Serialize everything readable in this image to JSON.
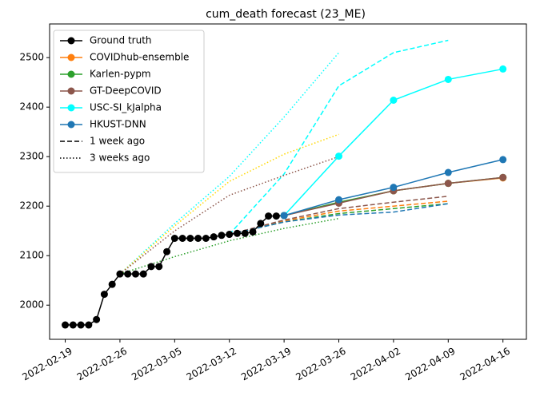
{
  "chart_data": {
    "type": "line",
    "title": "cum_death forecast (23_ME)",
    "xlim": [
      "2022-02-17",
      "2022-04-19"
    ],
    "ylim": [
      1931,
      2568
    ],
    "xticks": [
      "2022-02-19",
      "2022-02-26",
      "2022-03-05",
      "2022-03-12",
      "2022-03-19",
      "2022-03-26",
      "2022-04-02",
      "2022-04-09",
      "2022-04-16"
    ],
    "yticks": [
      2000,
      2100,
      2200,
      2300,
      2400,
      2500
    ],
    "legend": "upper left",
    "series": [
      {
        "name": "Ground truth",
        "color": "#000000",
        "x": [
          "2022-02-19",
          "2022-02-20",
          "2022-02-21",
          "2022-02-22",
          "2022-02-23",
          "2022-02-24",
          "2022-02-25",
          "2022-02-26",
          "2022-02-27",
          "2022-02-28",
          "2022-03-01",
          "2022-03-02",
          "2022-03-03",
          "2022-03-04",
          "2022-03-05",
          "2022-03-06",
          "2022-03-07",
          "2022-03-08",
          "2022-03-09",
          "2022-03-10",
          "2022-03-11",
          "2022-03-12",
          "2022-03-13",
          "2022-03-14",
          "2022-03-15",
          "2022-03-16",
          "2022-03-17",
          "2022-03-18",
          "2022-03-19"
        ],
        "values": [
          1960,
          1960,
          1960,
          1960,
          1971,
          2022,
          2042,
          2063,
          2063,
          2063,
          2063,
          2078,
          2078,
          2108,
          2135,
          2135,
          2135,
          2135,
          2135,
          2138,
          2141,
          2143,
          2145,
          2145,
          2148,
          2165,
          2180,
          2180,
          2181
        ]
      },
      {
        "name": "COVIDhub-ensemble",
        "color": "#ff7f0e",
        "x": [
          "2022-03-19",
          "2022-03-26",
          "2022-04-02",
          "2022-04-09",
          "2022-04-16"
        ],
        "values": [
          2181,
          2207,
          2231,
          2246,
          2257
        ]
      },
      {
        "name": "Karlen-pypm",
        "color": "#2ca02c",
        "x": [
          "2022-03-19",
          "2022-03-26",
          "2022-04-02",
          "2022-04-09",
          "2022-04-16"
        ],
        "values": [
          2181,
          2208,
          2231,
          2246,
          2258
        ]
      },
      {
        "name": "GT-DeepCOVID",
        "color": "#8c564b",
        "x": [
          "2022-03-19",
          "2022-03-26",
          "2022-04-02",
          "2022-04-09",
          "2022-04-16"
        ],
        "values": [
          2181,
          2206,
          2231,
          2246,
          2258
        ]
      },
      {
        "name": "USC-SI_kJalpha",
        "color": "#00ffff",
        "x": [
          "2022-03-19",
          "2022-03-26",
          "2022-04-02",
          "2022-04-09",
          "2022-04-16"
        ],
        "values": [
          2181,
          2301,
          2414,
          2456,
          2477
        ]
      },
      {
        "name": "HKUST-DNN",
        "color": "#1f77b4",
        "x": [
          "2022-03-19",
          "2022-03-26",
          "2022-04-02",
          "2022-04-09",
          "2022-04-16"
        ],
        "values": [
          2181,
          2213,
          2238,
          2268,
          2294
        ]
      }
    ],
    "past_forecasts": [
      {
        "name": "1 week ago",
        "linestyle": "dashed",
        "lines": [
          {
            "color": "#00ffff",
            "x": [
              "2022-03-12",
              "2022-03-19",
              "2022-03-26",
              "2022-04-02",
              "2022-04-09"
            ],
            "values": [
              2143,
              2265,
              2443,
              2510,
              2535
            ]
          },
          {
            "color": "#ff7f0e",
            "x": [
              "2022-03-12",
              "2022-03-19",
              "2022-03-26",
              "2022-04-02",
              "2022-04-09"
            ],
            "values": [
              2143,
              2170,
              2190,
              2200,
              2210
            ]
          },
          {
            "color": "#2ca02c",
            "x": [
              "2022-03-12",
              "2022-03-19",
              "2022-03-26",
              "2022-04-02",
              "2022-04-09"
            ],
            "values": [
              2143,
              2168,
              2185,
              2195,
              2205
            ]
          },
          {
            "color": "#8c564b",
            "x": [
              "2022-03-12",
              "2022-03-19",
              "2022-03-26",
              "2022-04-02",
              "2022-04-09"
            ],
            "values": [
              2143,
              2172,
              2195,
              2208,
              2220
            ]
          },
          {
            "color": "#1f77b4",
            "x": [
              "2022-03-12",
              "2022-03-19",
              "2022-03-26",
              "2022-04-02",
              "2022-04-09"
            ],
            "values": [
              2143,
              2168,
              2182,
              2188,
              2205
            ]
          }
        ]
      },
      {
        "name": "3 weeks ago",
        "linestyle": "dotted",
        "lines": [
          {
            "color": "#00ffff",
            "x": [
              "2022-02-26",
              "2022-03-05",
              "2022-03-12",
              "2022-03-19",
              "2022-03-26"
            ],
            "values": [
              2063,
              2165,
              2260,
              2380,
              2510
            ]
          },
          {
            "color": "#ffd700",
            "x": [
              "2022-02-26",
              "2022-03-05",
              "2022-03-12",
              "2022-03-19",
              "2022-03-26"
            ],
            "values": [
              2063,
              2160,
              2250,
              2305,
              2345
            ]
          },
          {
            "color": "#8c564b",
            "x": [
              "2022-02-26",
              "2022-03-05",
              "2022-03-12",
              "2022-03-19",
              "2022-03-26"
            ],
            "values": [
              2063,
              2150,
              2222,
              2262,
              2300
            ]
          },
          {
            "color": "#2ca02c",
            "x": [
              "2022-02-26",
              "2022-03-05",
              "2022-03-12",
              "2022-03-19",
              "2022-03-26"
            ],
            "values": [
              2063,
              2098,
              2130,
              2155,
              2175
            ]
          }
        ]
      }
    ]
  }
}
